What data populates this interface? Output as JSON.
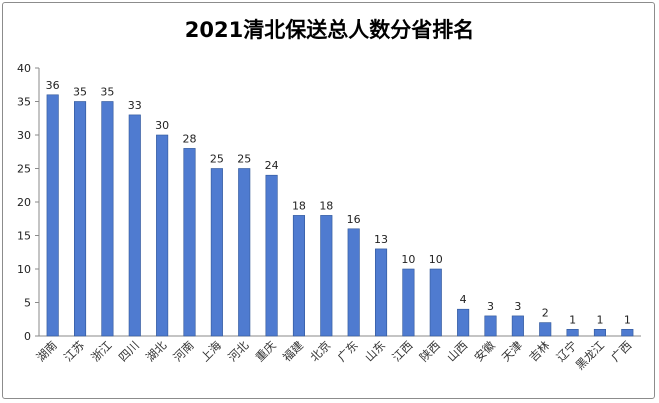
{
  "chart_data": {
    "type": "bar",
    "title": "2021清北保送总人数分省排名",
    "xlabel": "",
    "ylabel": "",
    "categories": [
      "湖南",
      "江苏",
      "浙江",
      "四川",
      "湖北",
      "河南",
      "上海",
      "河北",
      "重庆",
      "福建",
      "北京",
      "广东",
      "山东",
      "江西",
      "陕西",
      "山西",
      "安徽",
      "天津",
      "吉林",
      "辽宁",
      "黑龙江",
      "广西"
    ],
    "values": [
      36,
      35,
      35,
      33,
      30,
      28,
      25,
      25,
      24,
      18,
      18,
      16,
      13,
      10,
      10,
      4,
      3,
      3,
      2,
      1,
      1,
      1
    ],
    "ylim": [
      0,
      40
    ],
    "yticks": [
      "0",
      "5",
      "10",
      "15",
      "20",
      "25",
      "30",
      "35",
      "40"
    ],
    "grid": false,
    "legend": "none",
    "bar_color": "#4f7bd0",
    "bar_edge_color": "#2f5597"
  }
}
